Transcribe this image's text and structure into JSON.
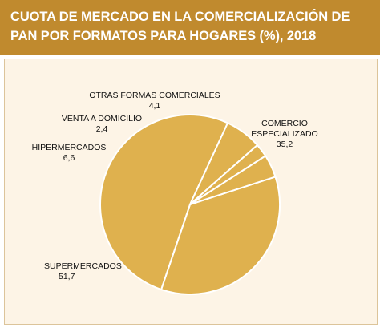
{
  "chart_data": {
    "type": "pie",
    "title": "CUOTA DE MERCADO EN LA COMERCIALIZACIÓN DE PAN POR FORMATOS PARA HOGARES (%), 2018",
    "slices": [
      {
        "label": [
          "COMERCIO",
          "ESPECIALIZADO"
        ],
        "value": 35.2,
        "value_text": "35,2",
        "color": "#dfb14e"
      },
      {
        "label": [
          "SUPERMERCADOS"
        ],
        "value": 51.7,
        "value_text": "51,7",
        "color": "#dfb14e"
      },
      {
        "label": [
          "HIPERMERCADOS"
        ],
        "value": 6.6,
        "value_text": "6,6",
        "color": "#dfb14e"
      },
      {
        "label": [
          "VENTA A DOMICILIO"
        ],
        "value": 2.4,
        "value_text": "2,4",
        "color": "#dfb14e"
      },
      {
        "label": [
          "OTRAS FORMAS COMERCIALES"
        ],
        "value": 4.1,
        "value_text": "4,1",
        "color": "#dfb14e"
      }
    ],
    "colors": {
      "header": "#c08a2e",
      "background": "#fdf4e6",
      "slice_border": "#ffffff"
    }
  }
}
